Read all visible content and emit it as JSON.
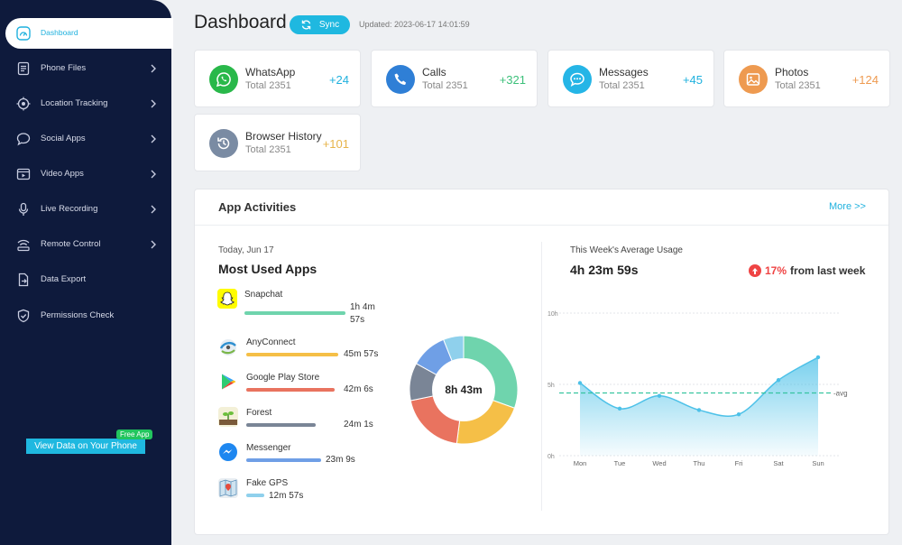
{
  "sidebar": {
    "items": [
      {
        "label": "Dashboard",
        "icon": "gauge-icon"
      },
      {
        "label": "Phone Files",
        "icon": "file-icon"
      },
      {
        "label": "Location Tracking",
        "icon": "location-icon"
      },
      {
        "label": "Social Apps",
        "icon": "chat-bubble-icon"
      },
      {
        "label": "Video Apps",
        "icon": "video-icon"
      },
      {
        "label": "Live Recording",
        "icon": "microphone-icon"
      },
      {
        "label": "Remote Control",
        "icon": "remote-icon"
      },
      {
        "label": "Data Export",
        "icon": "export-icon"
      },
      {
        "label": "Permissions Check",
        "icon": "shield-icon"
      }
    ],
    "cta_label": "View Data on Your Phone",
    "badge": "Free App"
  },
  "header": {
    "title": "Dashboard",
    "sync_label": "Sync",
    "updated": "Updated: 2023-06-17 14:01:59"
  },
  "stats": [
    {
      "name": "WhatsApp",
      "total": "Total 2351",
      "delta": "+24",
      "icon": "whatsapp-icon",
      "color": "#29b84a",
      "delta_color": "#1fb1de"
    },
    {
      "name": "Calls",
      "total": "Total 2351",
      "delta": "+321",
      "icon": "phone-icon",
      "color": "#2f7fd6",
      "delta_color": "#3cc07a"
    },
    {
      "name": "Messages",
      "total": "Total 2351",
      "delta": "+45",
      "icon": "message-icon",
      "color": "#25b5e6",
      "delta_color": "#1fb1de"
    },
    {
      "name": "Photos",
      "total": "Total 2351",
      "delta": "+124",
      "icon": "photo-icon",
      "color": "#ee9a50",
      "delta_color": "#ee9a50"
    },
    {
      "name": "Browser History",
      "total": "Total 2351",
      "delta": "+101",
      "icon": "history-icon",
      "color": "#7a8ba3",
      "delta_color": "#e7b44a"
    }
  ],
  "activities": {
    "title": "App Activities",
    "more": "More >>",
    "date": "Today, Jun 17",
    "most_used_title": "Most Used Apps",
    "total_time": "8h 43m",
    "apps": [
      {
        "name": "Snapchat",
        "time_line1": "1h 4m",
        "time_line2": "57s",
        "color": "#6fd4ad",
        "fraction": 1.0,
        "icon": "snapchat-icon"
      },
      {
        "name": "AnyConnect",
        "time_line1": "45m 57s",
        "time_line2": "",
        "color": "#f5bf47",
        "fraction": 0.84,
        "icon": "anyconnect-icon"
      },
      {
        "name": "Google Play Store",
        "time_line1": "42m 6s",
        "time_line2": "",
        "color": "#e9735f",
        "fraction": 0.8,
        "icon": "play-store-icon"
      },
      {
        "name": "Forest",
        "time_line1": "24m 1s",
        "time_line2": "",
        "color": "#7a8596",
        "fraction": 0.69,
        "icon": "forest-icon"
      },
      {
        "name": "Messenger",
        "time_line1": "23m 9s",
        "time_line2": "",
        "color": "#6f9fe6",
        "fraction": 0.67,
        "icon": "messenger-icon"
      },
      {
        "name": "Fake GPS",
        "time_line1": "12m 57s",
        "time_line2": "",
        "color": "#8fd0ec",
        "fraction": 0.2,
        "icon": "map-icon"
      }
    ],
    "week_label": "This Week's Average Usage",
    "week_value": "4h 23m 59s",
    "trend_pct": "17%",
    "trend_text": "from last week"
  },
  "chart_data": {
    "type": "area",
    "x": [
      "Mon",
      "Tue",
      "Wed",
      "Thu",
      "Fri",
      "Sat",
      "Sun"
    ],
    "values": [
      5.1,
      3.3,
      4.2,
      3.2,
      2.9,
      5.3,
      6.9
    ],
    "y_ticks": [
      "10h",
      "5h",
      "0h"
    ],
    "ylim": [
      0,
      10
    ],
    "avg": 4.4,
    "avg_label": "avg",
    "color": "#4cc1e8"
  }
}
